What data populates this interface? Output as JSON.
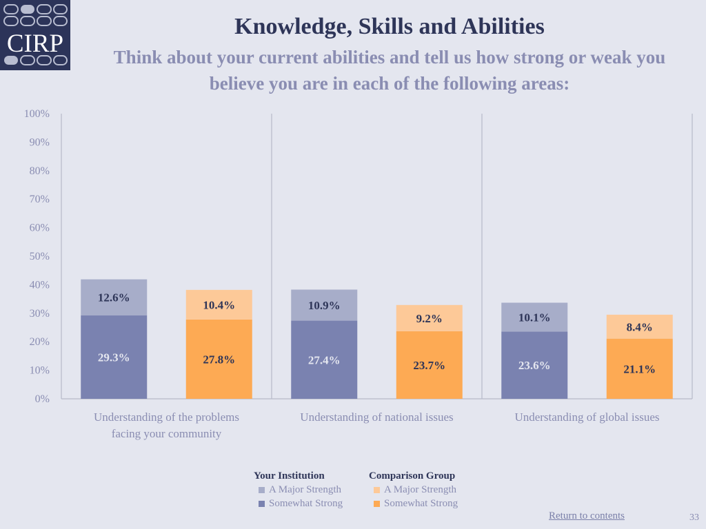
{
  "logo": {
    "text": "CIRP",
    "icon": "cirp-logo"
  },
  "title": "Knowledge, Skills and Abilities",
  "subtitle": "Think about your current abilities and tell us how strong or weak you believe you are in each of the following areas:",
  "chart_data": {
    "type": "bar",
    "stacked": true,
    "categories": [
      [
        "Understanding of the problems",
        "facing your community"
      ],
      [
        "Understanding of national issues"
      ],
      [
        "Understanding of global issues"
      ]
    ],
    "ylim": [
      0,
      100
    ],
    "yticks": [
      "0%",
      "10%",
      "20%",
      "30%",
      "40%",
      "50%",
      "60%",
      "70%",
      "80%",
      "90%",
      "100%"
    ],
    "value_format": "percent_one_decimal",
    "groups": [
      {
        "name": "Your Institution",
        "series": [
          {
            "name": "Somewhat Strong",
            "values": [
              29.3,
              27.4,
              23.6
            ],
            "color": "#7a82b0",
            "label_color": "#e4e6ef"
          },
          {
            "name": "A Major Strength",
            "values": [
              12.6,
              10.9,
              10.1
            ],
            "color": "#a7adc9",
            "label_color": "#2e3558"
          }
        ]
      },
      {
        "name": "Comparison Group",
        "series": [
          {
            "name": "Somewhat Strong",
            "values": [
              27.8,
              23.7,
              21.1
            ],
            "color": "#fdaa54",
            "label_color": "#2e3558"
          },
          {
            "name": "A Major Strength",
            "values": [
              10.4,
              9.2,
              8.4
            ],
            "color": "#fdc998",
            "label_color": "#2e3558"
          }
        ]
      }
    ],
    "grid": false,
    "legend_position": "bottom-center"
  },
  "legend": {
    "institution_header": "Your Institution",
    "comparison_header": "Comparison Group",
    "institution_items": [
      {
        "label": "A Major Strength",
        "color": "#a7adc9"
      },
      {
        "label": "Somewhat Strong",
        "color": "#7a82b0"
      }
    ],
    "comparison_items": [
      {
        "label": "A Major Strength",
        "color": "#fdc998"
      },
      {
        "label": "Somewhat Strong",
        "color": "#fdaa54"
      }
    ]
  },
  "footer": {
    "return_link": "Return to contents",
    "page_number": "33"
  }
}
